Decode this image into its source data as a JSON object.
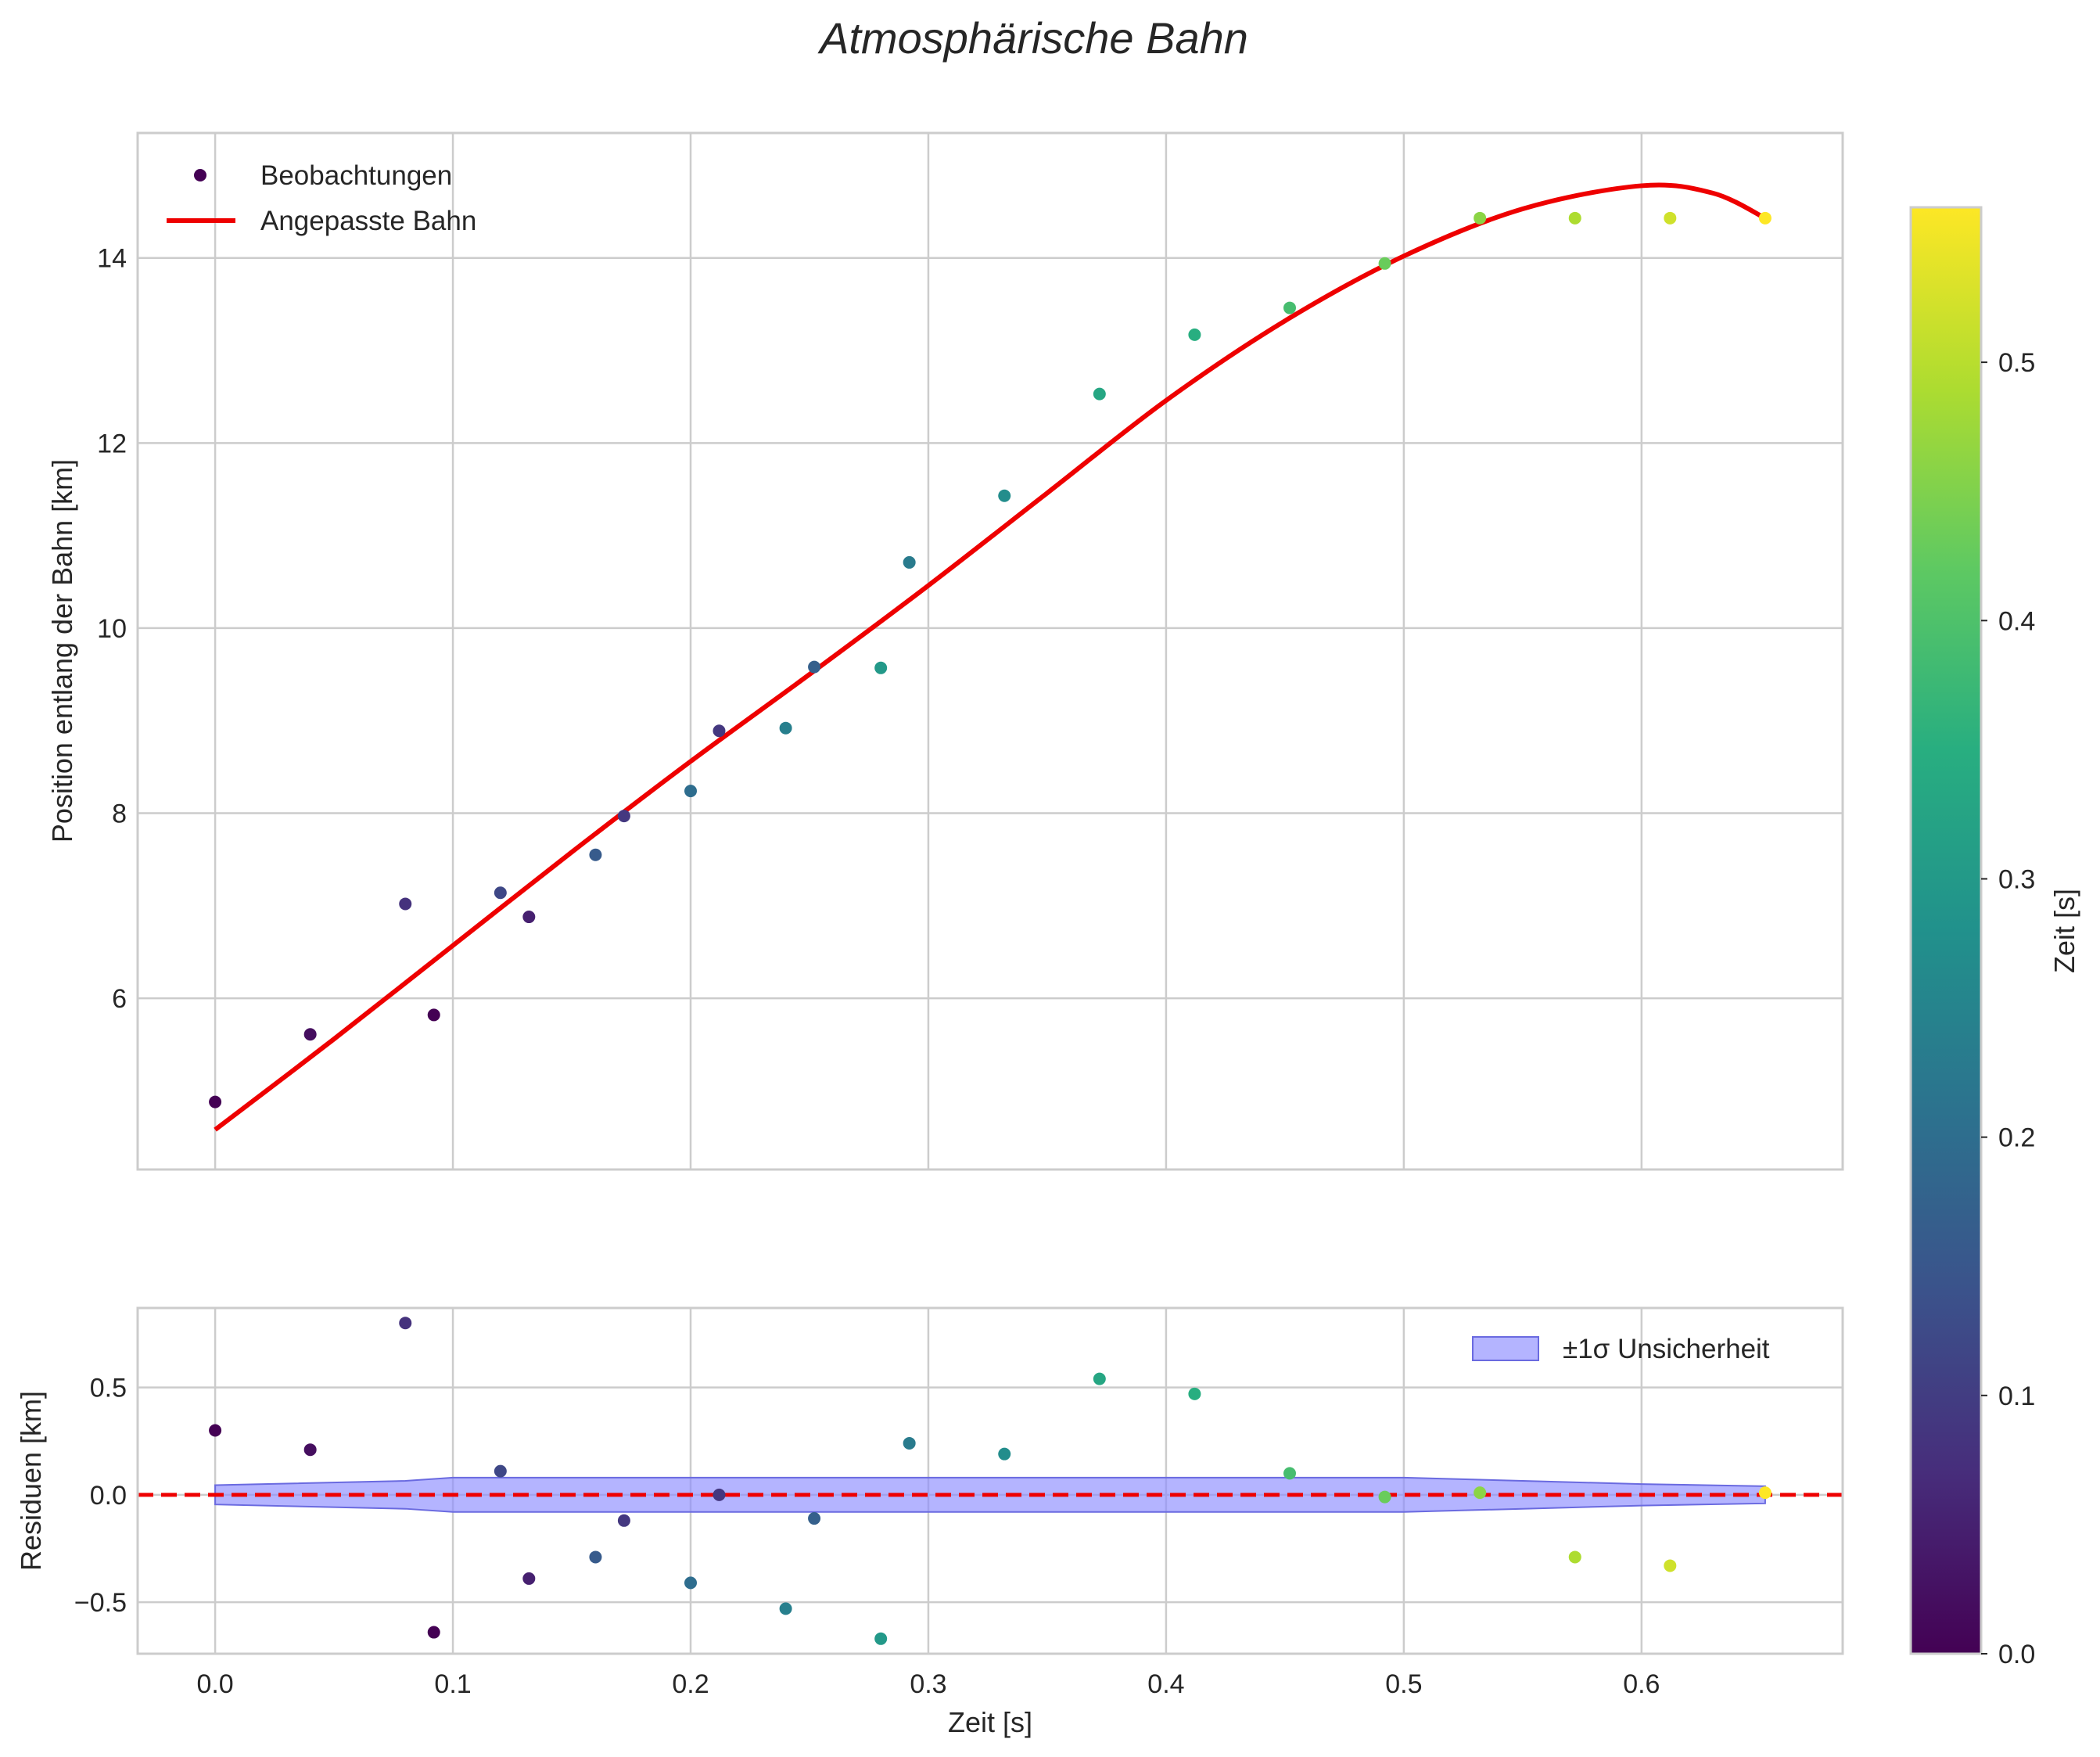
{
  "chart_data": {
    "type": "scatter",
    "title": "Atmosphärische Bahn",
    "top": {
      "ylabel": "Position entlang der Bahn [km]",
      "xlim": [
        -0.0326,
        0.6846
      ],
      "ylim": [
        4.15,
        15.35
      ],
      "yticks": [
        6,
        8,
        10,
        12,
        14
      ],
      "ytick_labels": [
        "6",
        "8",
        "10",
        "12",
        "14"
      ],
      "grid": true,
      "legend": {
        "position": "top-left",
        "entries": [
          "Beobachtungen",
          "Angepasste Bahn"
        ]
      },
      "observations": {
        "name": "Beobachtungen",
        "t": [
          0.0,
          0.04,
          0.08,
          0.092,
          0.12,
          0.132,
          0.16,
          0.172,
          0.2,
          0.212,
          0.24,
          0.252,
          0.28,
          0.292,
          0.332,
          0.372,
          0.412,
          0.452,
          0.492,
          0.532,
          0.572,
          0.612,
          0.652
        ],
        "y": [
          4.88,
          5.61,
          7.02,
          5.82,
          7.14,
          6.88,
          7.55,
          7.97,
          8.24,
          8.89,
          8.92,
          9.58,
          9.57,
          10.71,
          11.43,
          12.53,
          13.17,
          13.46,
          13.94,
          14.43,
          14.43,
          14.43,
          14.43
        ],
        "color_value_s": [
          0.0,
          0.02,
          0.08,
          0.0,
          0.12,
          0.05,
          0.16,
          0.09,
          0.2,
          0.09,
          0.24,
          0.17,
          0.3,
          0.23,
          0.27,
          0.33,
          0.35,
          0.39,
          0.43,
          0.46,
          0.49,
          0.52,
          0.56
        ]
      },
      "fit": {
        "name": "Angepasste Bahn",
        "color": "#ee0000",
        "t": [
          0.0,
          0.05,
          0.1,
          0.15,
          0.2,
          0.25,
          0.3,
          0.35,
          0.4,
          0.45,
          0.5,
          0.55,
          0.6,
          0.63,
          0.652
        ],
        "y": [
          4.58,
          5.56,
          6.57,
          7.58,
          8.56,
          9.5,
          10.46,
          11.46,
          12.46,
          13.32,
          14.02,
          14.53,
          14.78,
          14.7,
          14.43
        ]
      }
    },
    "bottom": {
      "xlabel": "Zeit [s]",
      "ylabel": "Residuen [km]",
      "xlim": [
        -0.0326,
        0.6846
      ],
      "ylim": [
        -0.74,
        0.87
      ],
      "xticks": [
        0.0,
        0.1,
        0.2,
        0.3,
        0.4,
        0.5,
        0.6
      ],
      "xtick_labels": [
        "0.0",
        "0.1",
        "0.2",
        "0.3",
        "0.4",
        "0.5",
        "0.6"
      ],
      "yticks": [
        -0.5,
        0.0,
        0.5
      ],
      "ytick_labels": [
        "−0.5",
        "0.0",
        "0.5"
      ],
      "grid": true,
      "legend": {
        "position": "top-right",
        "entries": [
          "±1σ Unsicherheit"
        ]
      },
      "residuals": {
        "t": [
          0.0,
          0.04,
          0.08,
          0.092,
          0.12,
          0.132,
          0.16,
          0.172,
          0.2,
          0.212,
          0.24,
          0.252,
          0.28,
          0.292,
          0.332,
          0.372,
          0.412,
          0.452,
          0.492,
          0.532,
          0.572,
          0.612,
          0.652
        ],
        "r": [
          0.3,
          0.21,
          0.8,
          -0.64,
          0.11,
          -0.39,
          -0.29,
          -0.12,
          -0.41,
          0.0,
          -0.53,
          -0.11,
          -0.67,
          0.24,
          0.19,
          0.54,
          0.47,
          0.1,
          -0.01,
          0.01,
          -0.29,
          -0.33,
          0.01
        ],
        "color_value_s": [
          0.0,
          0.02,
          0.08,
          0.0,
          0.12,
          0.05,
          0.16,
          0.09,
          0.2,
          0.09,
          0.24,
          0.17,
          0.3,
          0.23,
          0.27,
          0.33,
          0.35,
          0.39,
          0.43,
          0.46,
          0.49,
          0.52,
          0.56
        ]
      },
      "uncertainty_band": {
        "name": "±1σ Unsicherheit",
        "color": "#8c8cff",
        "t": [
          0.0,
          0.08,
          0.1,
          0.2,
          0.3,
          0.4,
          0.5,
          0.55,
          0.6,
          0.652
        ],
        "sigma": [
          0.045,
          0.065,
          0.08,
          0.08,
          0.08,
          0.08,
          0.08,
          0.065,
          0.05,
          0.04
        ]
      },
      "zero_line_color": "#ee0000"
    },
    "colorbar": {
      "label": "Zeit [s]",
      "range": [
        0.0,
        0.56
      ],
      "ticks": [
        0.0,
        0.1,
        0.2,
        0.3,
        0.4,
        0.5
      ],
      "tick_labels": [
        "0.0",
        "0.1",
        "0.2",
        "0.3",
        "0.4",
        "0.5"
      ],
      "colormap": "viridis"
    }
  }
}
